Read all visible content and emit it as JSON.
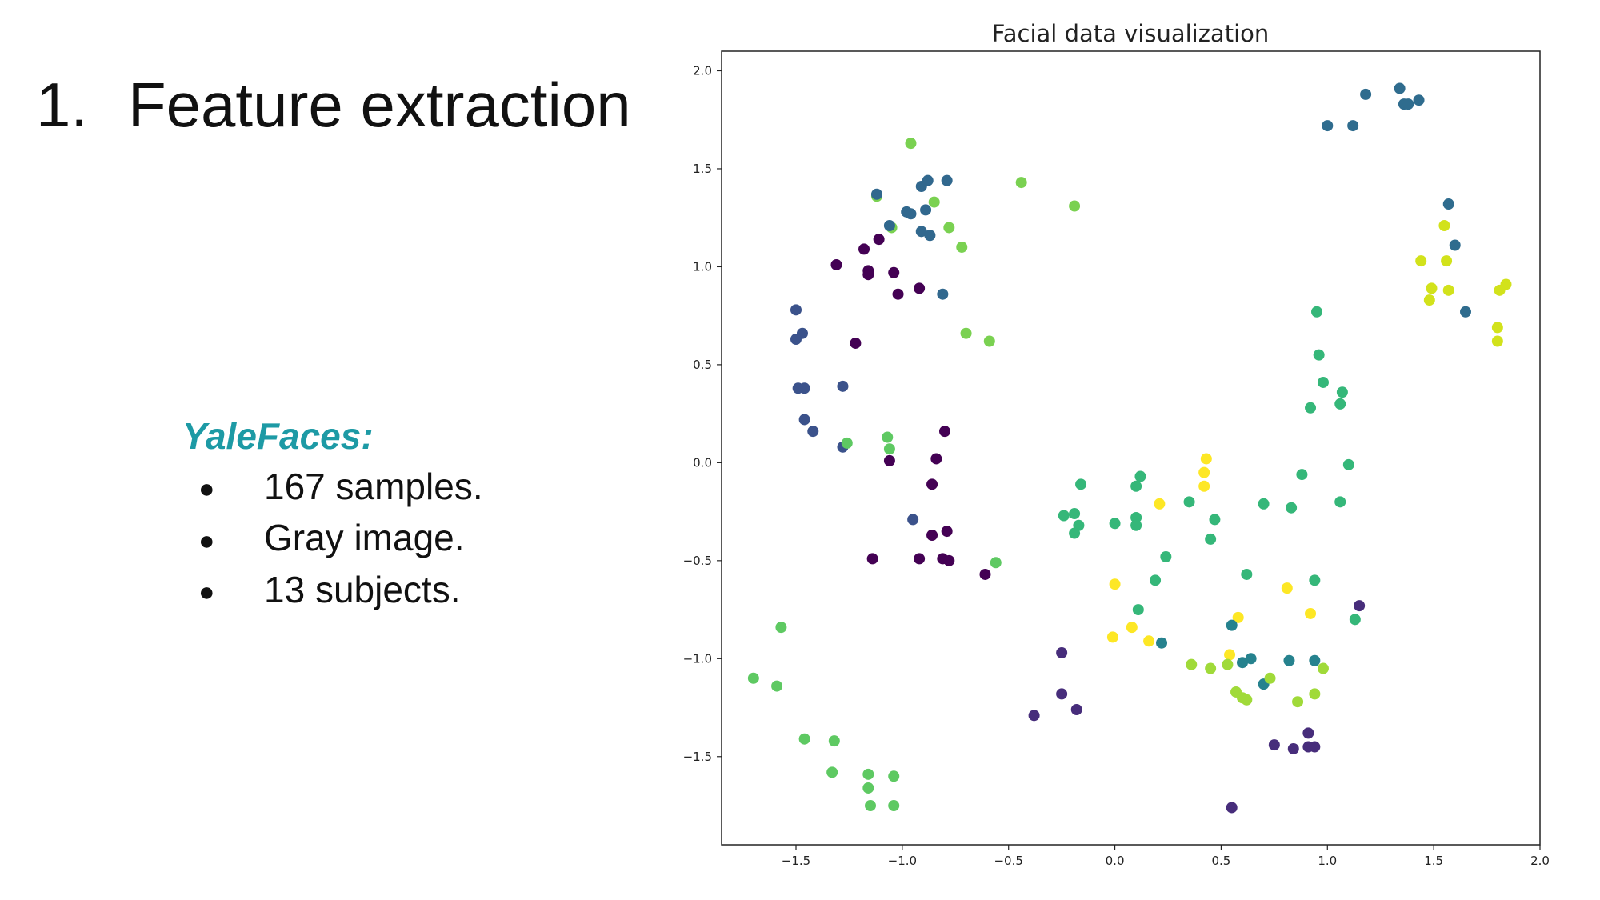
{
  "slide": {
    "title_number": "1.",
    "title_text": "Feature extraction",
    "dataset_heading": "YaleFaces:",
    "bullets": [
      "167 samples.",
      "Gray image.",
      "13 subjects."
    ],
    "bullet_glyph": "●",
    "heading_color": "#1d9aa5"
  },
  "chart_data": {
    "type": "scatter",
    "title": "Facial data visualization",
    "xlabel": "",
    "ylabel": "",
    "xlim": [
      -1.85,
      2.0
    ],
    "ylim": [
      -1.95,
      2.1
    ],
    "xticks": [
      -1.5,
      -1.0,
      -0.5,
      0.0,
      0.5,
      1.0,
      1.5,
      2.0
    ],
    "xtick_labels": [
      "−1.5",
      "−1.0",
      "−0.5",
      "0.0",
      "0.5",
      "1.0",
      "1.5",
      "2.0"
    ],
    "yticks": [
      2.0,
      1.5,
      1.0,
      0.5,
      0.0,
      -0.5,
      -1.0,
      -1.5
    ],
    "ytick_labels": [
      "2.0",
      "1.5",
      "1.0",
      "0.5",
      "0.0",
      "−0.5",
      "−1.0",
      "−1.5"
    ],
    "grid": false,
    "colormap": "viridis",
    "points": [
      {
        "x": 1.34,
        "y": 1.91,
        "c": "#2f6c8e"
      },
      {
        "x": 1.18,
        "y": 1.88,
        "c": "#2f6c8e"
      },
      {
        "x": 1.36,
        "y": 1.83,
        "c": "#2f6c8e"
      },
      {
        "x": 1.38,
        "y": 1.83,
        "c": "#2f6c8e"
      },
      {
        "x": 1.43,
        "y": 1.85,
        "c": "#2f6c8e"
      },
      {
        "x": 1.0,
        "y": 1.72,
        "c": "#2f6c8e"
      },
      {
        "x": 1.12,
        "y": 1.72,
        "c": "#2f6c8e"
      },
      {
        "x": 1.57,
        "y": 1.32,
        "c": "#2f6c8e"
      },
      {
        "x": 1.6,
        "y": 1.11,
        "c": "#2f6c8e"
      },
      {
        "x": 1.65,
        "y": 0.77,
        "c": "#2f6c8e"
      },
      {
        "x": 1.55,
        "y": 1.21,
        "c": "#d2e21b"
      },
      {
        "x": 1.44,
        "y": 1.03,
        "c": "#d2e21b"
      },
      {
        "x": 1.56,
        "y": 1.03,
        "c": "#d2e21b"
      },
      {
        "x": 1.49,
        "y": 0.89,
        "c": "#d2e21b"
      },
      {
        "x": 1.57,
        "y": 0.88,
        "c": "#d2e21b"
      },
      {
        "x": 1.48,
        "y": 0.83,
        "c": "#d2e21b"
      },
      {
        "x": 1.84,
        "y": 0.91,
        "c": "#d2e21b"
      },
      {
        "x": 1.81,
        "y": 0.88,
        "c": "#d2e21b"
      },
      {
        "x": 1.8,
        "y": 0.69,
        "c": "#d2e21b"
      },
      {
        "x": 1.8,
        "y": 0.62,
        "c": "#d2e21b"
      },
      {
        "x": -0.96,
        "y": 1.63,
        "c": "#7ad151"
      },
      {
        "x": -0.44,
        "y": 1.43,
        "c": "#7ad151"
      },
      {
        "x": -0.19,
        "y": 1.31,
        "c": "#7ad151"
      },
      {
        "x": -1.12,
        "y": 1.36,
        "c": "#7ad151"
      },
      {
        "x": -0.85,
        "y": 1.33,
        "c": "#7ad151"
      },
      {
        "x": -1.05,
        "y": 1.2,
        "c": "#7ad151"
      },
      {
        "x": -0.78,
        "y": 1.2,
        "c": "#7ad151"
      },
      {
        "x": -0.72,
        "y": 1.1,
        "c": "#7ad151"
      },
      {
        "x": -0.7,
        "y": 0.66,
        "c": "#7ad151"
      },
      {
        "x": -0.59,
        "y": 0.62,
        "c": "#7ad151"
      },
      {
        "x": -1.12,
        "y": 1.37,
        "c": "#31688e"
      },
      {
        "x": -0.91,
        "y": 1.41,
        "c": "#31688e"
      },
      {
        "x": -0.88,
        "y": 1.44,
        "c": "#31688e"
      },
      {
        "x": -0.79,
        "y": 1.44,
        "c": "#31688e"
      },
      {
        "x": -0.98,
        "y": 1.28,
        "c": "#31688e"
      },
      {
        "x": -0.96,
        "y": 1.27,
        "c": "#31688e"
      },
      {
        "x": -0.89,
        "y": 1.29,
        "c": "#31688e"
      },
      {
        "x": -1.06,
        "y": 1.21,
        "c": "#31688e"
      },
      {
        "x": -0.91,
        "y": 1.18,
        "c": "#31688e"
      },
      {
        "x": -0.87,
        "y": 1.16,
        "c": "#31688e"
      },
      {
        "x": -0.81,
        "y": 0.86,
        "c": "#31688e"
      },
      {
        "x": -1.31,
        "y": 1.01,
        "c": "#440154"
      },
      {
        "x": -1.18,
        "y": 1.09,
        "c": "#440154"
      },
      {
        "x": -1.11,
        "y": 1.14,
        "c": "#440154"
      },
      {
        "x": -1.16,
        "y": 0.98,
        "c": "#440154"
      },
      {
        "x": -1.16,
        "y": 0.96,
        "c": "#440154"
      },
      {
        "x": -1.04,
        "y": 0.97,
        "c": "#440154"
      },
      {
        "x": -0.92,
        "y": 0.89,
        "c": "#440154"
      },
      {
        "x": -1.02,
        "y": 0.86,
        "c": "#440154"
      },
      {
        "x": -1.22,
        "y": 0.61,
        "c": "#440154"
      },
      {
        "x": -1.5,
        "y": 0.78,
        "c": "#3b528b"
      },
      {
        "x": -1.47,
        "y": 0.66,
        "c": "#3b528b"
      },
      {
        "x": -1.5,
        "y": 0.63,
        "c": "#3b528b"
      },
      {
        "x": -1.49,
        "y": 0.38,
        "c": "#3b528b"
      },
      {
        "x": -1.46,
        "y": 0.38,
        "c": "#3b528b"
      },
      {
        "x": -1.28,
        "y": 0.39,
        "c": "#3b528b"
      },
      {
        "x": -1.46,
        "y": 0.22,
        "c": "#3b528b"
      },
      {
        "x": -1.42,
        "y": 0.16,
        "c": "#3b528b"
      },
      {
        "x": -1.28,
        "y": 0.08,
        "c": "#3b528b"
      },
      {
        "x": -0.95,
        "y": -0.29,
        "c": "#3b528b"
      },
      {
        "x": -1.26,
        "y": 0.1,
        "c": "#5ec962"
      },
      {
        "x": -1.07,
        "y": 0.13,
        "c": "#5ec962"
      },
      {
        "x": -1.06,
        "y": 0.07,
        "c": "#5ec962"
      },
      {
        "x": -0.56,
        "y": -0.51,
        "c": "#5ec962"
      },
      {
        "x": -0.8,
        "y": 0.16,
        "c": "#440154"
      },
      {
        "x": -1.06,
        "y": 0.01,
        "c": "#440154"
      },
      {
        "x": -0.84,
        "y": 0.02,
        "c": "#440154"
      },
      {
        "x": -0.86,
        "y": -0.11,
        "c": "#440154"
      },
      {
        "x": -0.86,
        "y": -0.37,
        "c": "#440154"
      },
      {
        "x": -0.79,
        "y": -0.35,
        "c": "#440154"
      },
      {
        "x": -1.14,
        "y": -0.49,
        "c": "#440154"
      },
      {
        "x": -0.92,
        "y": -0.49,
        "c": "#440154"
      },
      {
        "x": -0.81,
        "y": -0.49,
        "c": "#440154"
      },
      {
        "x": -0.78,
        "y": -0.5,
        "c": "#440154"
      },
      {
        "x": -0.61,
        "y": -0.57,
        "c": "#440154"
      },
      {
        "x": -1.57,
        "y": -0.84,
        "c": "#5ec962"
      },
      {
        "x": -1.7,
        "y": -1.1,
        "c": "#5ec962"
      },
      {
        "x": -1.59,
        "y": -1.14,
        "c": "#5ec962"
      },
      {
        "x": -1.46,
        "y": -1.41,
        "c": "#5ec962"
      },
      {
        "x": -1.32,
        "y": -1.42,
        "c": "#5ec962"
      },
      {
        "x": -1.33,
        "y": -1.58,
        "c": "#5ec962"
      },
      {
        "x": -1.16,
        "y": -1.59,
        "c": "#5ec962"
      },
      {
        "x": -1.04,
        "y": -1.6,
        "c": "#5ec962"
      },
      {
        "x": -1.16,
        "y": -1.66,
        "c": "#5ec962"
      },
      {
        "x": -1.15,
        "y": -1.75,
        "c": "#5ec962"
      },
      {
        "x": -1.04,
        "y": -1.75,
        "c": "#5ec962"
      },
      {
        "x": -0.25,
        "y": -0.97,
        "c": "#472d7b"
      },
      {
        "x": -0.25,
        "y": -1.18,
        "c": "#472d7b"
      },
      {
        "x": -0.18,
        "y": -1.26,
        "c": "#472d7b"
      },
      {
        "x": -0.38,
        "y": -1.29,
        "c": "#472d7b"
      },
      {
        "x": 0.95,
        "y": 0.77,
        "c": "#35b779"
      },
      {
        "x": 0.96,
        "y": 0.55,
        "c": "#35b779"
      },
      {
        "x": 0.98,
        "y": 0.41,
        "c": "#35b779"
      },
      {
        "x": 1.07,
        "y": 0.36,
        "c": "#35b779"
      },
      {
        "x": 1.06,
        "y": 0.3,
        "c": "#35b779"
      },
      {
        "x": 0.92,
        "y": 0.28,
        "c": "#35b779"
      },
      {
        "x": 1.1,
        "y": -0.01,
        "c": "#35b779"
      },
      {
        "x": 0.12,
        "y": -0.07,
        "c": "#35b779"
      },
      {
        "x": -0.16,
        "y": -0.11,
        "c": "#35b779"
      },
      {
        "x": 0.1,
        "y": -0.12,
        "c": "#35b779"
      },
      {
        "x": -0.24,
        "y": -0.27,
        "c": "#35b779"
      },
      {
        "x": -0.19,
        "y": -0.26,
        "c": "#35b779"
      },
      {
        "x": -0.17,
        "y": -0.32,
        "c": "#35b779"
      },
      {
        "x": -0.19,
        "y": -0.36,
        "c": "#35b779"
      },
      {
        "x": 0.0,
        "y": -0.31,
        "c": "#35b779"
      },
      {
        "x": 0.1,
        "y": -0.28,
        "c": "#35b779"
      },
      {
        "x": 0.1,
        "y": -0.32,
        "c": "#35b779"
      },
      {
        "x": 0.47,
        "y": -0.29,
        "c": "#35b779"
      },
      {
        "x": 0.45,
        "y": -0.39,
        "c": "#35b779"
      },
      {
        "x": 0.24,
        "y": -0.48,
        "c": "#35b779"
      },
      {
        "x": 0.19,
        "y": -0.6,
        "c": "#35b779"
      },
      {
        "x": 0.11,
        "y": -0.75,
        "c": "#35b779"
      },
      {
        "x": 0.35,
        "y": -0.2,
        "c": "#35b779"
      },
      {
        "x": 0.7,
        "y": -0.21,
        "c": "#35b779"
      },
      {
        "x": 0.83,
        "y": -0.23,
        "c": "#35b779"
      },
      {
        "x": 0.88,
        "y": -0.06,
        "c": "#35b779"
      },
      {
        "x": 1.06,
        "y": -0.2,
        "c": "#35b779"
      },
      {
        "x": 0.62,
        "y": -0.57,
        "c": "#35b779"
      },
      {
        "x": 0.94,
        "y": -0.6,
        "c": "#35b779"
      },
      {
        "x": 1.13,
        "y": -0.8,
        "c": "#35b779"
      },
      {
        "x": 0.43,
        "y": 0.02,
        "c": "#fde725"
      },
      {
        "x": 0.42,
        "y": -0.05,
        "c": "#fde725"
      },
      {
        "x": 0.42,
        "y": -0.12,
        "c": "#fde725"
      },
      {
        "x": 0.21,
        "y": -0.21,
        "c": "#fde725"
      },
      {
        "x": 0.0,
        "y": -0.62,
        "c": "#fde725"
      },
      {
        "x": 0.81,
        "y": -0.64,
        "c": "#fde725"
      },
      {
        "x": 0.92,
        "y": -0.77,
        "c": "#fde725"
      },
      {
        "x": 0.58,
        "y": -0.79,
        "c": "#fde725"
      },
      {
        "x": 0.08,
        "y": -0.84,
        "c": "#fde725"
      },
      {
        "x": -0.01,
        "y": -0.89,
        "c": "#fde725"
      },
      {
        "x": 0.16,
        "y": -0.91,
        "c": "#fde725"
      },
      {
        "x": 0.54,
        "y": -0.98,
        "c": "#fde725"
      },
      {
        "x": 0.55,
        "y": -0.83,
        "c": "#26828e"
      },
      {
        "x": 0.22,
        "y": -0.92,
        "c": "#26828e"
      },
      {
        "x": 0.6,
        "y": -1.02,
        "c": "#26828e"
      },
      {
        "x": 0.64,
        "y": -1.0,
        "c": "#26828e"
      },
      {
        "x": 0.82,
        "y": -1.01,
        "c": "#26828e"
      },
      {
        "x": 0.94,
        "y": -1.01,
        "c": "#26828e"
      },
      {
        "x": 0.7,
        "y": -1.13,
        "c": "#26828e"
      },
      {
        "x": 0.36,
        "y": -1.03,
        "c": "#a0da39"
      },
      {
        "x": 0.45,
        "y": -1.05,
        "c": "#a0da39"
      },
      {
        "x": 0.53,
        "y": -1.03,
        "c": "#a0da39"
      },
      {
        "x": 0.73,
        "y": -1.1,
        "c": "#a0da39"
      },
      {
        "x": 0.98,
        "y": -1.05,
        "c": "#a0da39"
      },
      {
        "x": 0.57,
        "y": -1.17,
        "c": "#a0da39"
      },
      {
        "x": 0.6,
        "y": -1.2,
        "c": "#a0da39"
      },
      {
        "x": 0.62,
        "y": -1.21,
        "c": "#a0da39"
      },
      {
        "x": 0.94,
        "y": -1.18,
        "c": "#a0da39"
      },
      {
        "x": 0.86,
        "y": -1.22,
        "c": "#a0da39"
      },
      {
        "x": 1.15,
        "y": -0.73,
        "c": "#472d7b"
      },
      {
        "x": 0.91,
        "y": -1.38,
        "c": "#472d7b"
      },
      {
        "x": 0.75,
        "y": -1.44,
        "c": "#472d7b"
      },
      {
        "x": 0.84,
        "y": -1.46,
        "c": "#472d7b"
      },
      {
        "x": 0.91,
        "y": -1.45,
        "c": "#472d7b"
      },
      {
        "x": 0.94,
        "y": -1.45,
        "c": "#472d7b"
      },
      {
        "x": 0.55,
        "y": -1.76,
        "c": "#472d7b"
      }
    ]
  }
}
